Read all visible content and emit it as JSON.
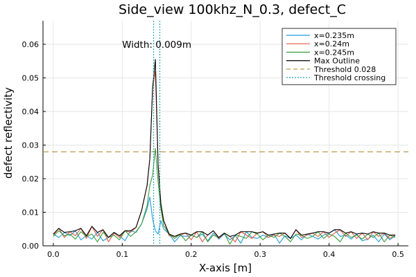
{
  "chart_data": {
    "type": "line",
    "title": "Side_view 100khz_N_0.3, defect_C",
    "xlabel": "X-axis [m]",
    "ylabel": "defect reflectivity",
    "xlim": [
      -0.015,
      0.515
    ],
    "ylim": [
      0.0,
      0.067
    ],
    "xticks": [
      0.0,
      0.1,
      0.2,
      0.3,
      0.4,
      0.5
    ],
    "xtick_labels": [
      "0.0",
      "0.1",
      "0.2",
      "0.3",
      "0.4",
      "0.5"
    ],
    "yticks": [
      0.0,
      0.01,
      0.02,
      0.03,
      0.04,
      0.05,
      0.06
    ],
    "ytick_labels": [
      "0.00",
      "0.01",
      "0.02",
      "0.03",
      "0.04",
      "0.05",
      "0.06"
    ],
    "grid": true,
    "legend_position": "top-right",
    "annotation": {
      "text": "Width: 0.009m",
      "x": 0.15,
      "y": 0.06
    },
    "x": [
      0.0,
      0.008,
      0.016,
      0.024,
      0.032,
      0.04,
      0.048,
      0.056,
      0.064,
      0.072,
      0.08,
      0.088,
      0.096,
      0.104,
      0.112,
      0.12,
      0.128,
      0.136,
      0.14,
      0.144,
      0.148,
      0.152,
      0.156,
      0.16,
      0.168,
      0.176,
      0.184,
      0.192,
      0.2,
      0.208,
      0.216,
      0.224,
      0.232,
      0.24,
      0.248,
      0.256,
      0.264,
      0.272,
      0.28,
      0.288,
      0.296,
      0.304,
      0.312,
      0.32,
      0.328,
      0.336,
      0.344,
      0.352,
      0.36,
      0.368,
      0.376,
      0.384,
      0.392,
      0.4,
      0.408,
      0.416,
      0.424,
      0.432,
      0.44,
      0.448,
      0.456,
      0.464,
      0.472,
      0.48,
      0.488,
      0.496
    ],
    "series": [
      {
        "name": "x=0.235m",
        "color": "#1f9bd8",
        "style": "solid",
        "values": [
          0.0035,
          0.0025,
          0.004,
          0.003,
          0.0045,
          0.0018,
          0.003,
          0.002,
          0.004,
          0.0015,
          0.0025,
          0.004,
          0.003,
          0.0015,
          0.0045,
          0.004,
          0.0065,
          0.011,
          0.0145,
          0.008,
          0.0045,
          0.0035,
          0.0075,
          0.005,
          0.0035,
          0.0012,
          0.003,
          0.0028,
          0.0032,
          0.0025,
          0.0035,
          0.0015,
          0.0038,
          0.002,
          0.0035,
          0.0018,
          0.003,
          0.0008,
          0.0042,
          0.0025,
          0.0022,
          0.0032,
          0.0025,
          0.0035,
          0.0008,
          0.003,
          0.0022,
          0.0032,
          0.0018,
          0.0035,
          0.0028,
          0.002,
          0.0032,
          0.0038,
          0.0048,
          0.0028,
          0.0032,
          0.002,
          0.0035,
          0.0015,
          0.002,
          0.0032,
          0.0012,
          0.0035,
          0.0018,
          0.003
        ]
      },
      {
        "name": "x=0.24m",
        "color": "#e05a40",
        "style": "solid",
        "values": [
          0.0032,
          0.0052,
          0.0025,
          0.0042,
          0.003,
          0.0052,
          0.0022,
          0.0058,
          0.0028,
          0.0048,
          0.0012,
          0.0038,
          0.0025,
          0.0045,
          0.004,
          0.0055,
          0.0105,
          0.018,
          0.026,
          0.047,
          0.052,
          0.024,
          0.0125,
          0.0075,
          0.003,
          0.0028,
          0.0032,
          0.0038,
          0.0018,
          0.0042,
          0.0012,
          0.0032,
          0.0045,
          0.0022,
          0.0038,
          0.0028,
          0.0012,
          0.0042,
          0.0032,
          0.0022,
          0.0038,
          0.0042,
          0.0025,
          0.0032,
          0.0028,
          0.0038,
          0.0022,
          0.0048,
          0.0025,
          0.0032,
          0.0038,
          0.0028,
          0.0042,
          0.0025,
          0.0038,
          0.0048,
          0.0028,
          0.0042,
          0.0022,
          0.0038,
          0.0018,
          0.0042,
          0.0028,
          0.0038,
          0.0022,
          0.0032
        ]
      },
      {
        "name": "x=0.245m",
        "color": "#3b9b3b",
        "style": "solid",
        "values": [
          0.0028,
          0.0045,
          0.003,
          0.0035,
          0.002,
          0.0042,
          0.0028,
          0.0035,
          0.0012,
          0.004,
          0.0025,
          0.0032,
          0.0018,
          0.0045,
          0.0028,
          0.0042,
          0.0065,
          0.012,
          0.018,
          0.021,
          0.029,
          0.019,
          0.011,
          0.006,
          0.0035,
          0.0022,
          0.0035,
          0.0015,
          0.0032,
          0.0025,
          0.0042,
          0.0012,
          0.0032,
          0.0025,
          0.0038,
          0.0005,
          0.0032,
          0.0028,
          0.0022,
          0.0042,
          0.0035,
          0.0018,
          0.0032,
          0.0025,
          0.0038,
          0.0028,
          0.0012,
          0.0035,
          0.0032,
          0.0022,
          0.0028,
          0.0042,
          0.0022,
          0.0035,
          0.0028,
          0.0012,
          0.0038,
          0.0025,
          0.0032,
          0.002,
          0.0035,
          0.0025,
          0.0038,
          0.0012,
          0.0032,
          0.0025
        ]
      },
      {
        "name": "Max Outline",
        "color": "#000000",
        "style": "solid",
        "values": [
          0.0035,
          0.0052,
          0.004,
          0.0042,
          0.0045,
          0.0052,
          0.003,
          0.0058,
          0.004,
          0.0048,
          0.0025,
          0.004,
          0.003,
          0.0045,
          0.0045,
          0.0055,
          0.0105,
          0.018,
          0.026,
          0.047,
          0.0555,
          0.024,
          0.0125,
          0.0075,
          0.0035,
          0.0028,
          0.0035,
          0.0038,
          0.0032,
          0.0042,
          0.0042,
          0.0032,
          0.0045,
          0.0025,
          0.0038,
          0.0028,
          0.0032,
          0.0042,
          0.0042,
          0.0042,
          0.0038,
          0.0042,
          0.0032,
          0.0035,
          0.0038,
          0.0038,
          0.0022,
          0.0048,
          0.0032,
          0.0035,
          0.0038,
          0.0042,
          0.0042,
          0.0038,
          0.0048,
          0.0048,
          0.0038,
          0.0042,
          0.0035,
          0.0038,
          0.0035,
          0.0042,
          0.0038,
          0.0038,
          0.0032,
          0.0032
        ]
      }
    ],
    "threshold": {
      "name": "Threshold 0.028",
      "value": 0.028,
      "color": "#b08d3a",
      "style": "dashed"
    },
    "crossings": {
      "name": "Threshold crossing",
      "values": [
        0.1455,
        0.1545
      ],
      "color": "#1aa3b5",
      "style": "dotted"
    }
  }
}
